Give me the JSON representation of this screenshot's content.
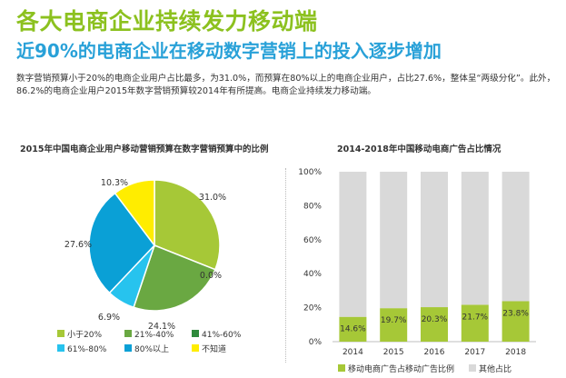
{
  "header": {
    "title": "各大电商企业持续发力移动端",
    "subtitle": "近90%的电商企业在移动数字营销上的投入逐步增加",
    "description": "数字营销预算小于20%的电商企业用户占比最多，为31.0%，而预算在80%以上的电商企业用户，占比27.6%，整体呈“两级分化”。此外，86.2%的电商企业用户2015年数字营销预算较2014年有所提高。电商企业持续发力移动端。"
  },
  "chart_data": [
    {
      "type": "pie",
      "title": "2015年中国电商企业用户移动营销预算在数字营销预算中的比例",
      "categories": [
        "小于20%",
        "21%-40%",
        "41%-60%",
        "61%-80%",
        "80%以上",
        "不知道"
      ],
      "values": [
        31.0,
        24.1,
        0.0,
        6.9,
        27.6,
        10.3
      ],
      "value_labels": [
        "31.0%",
        "24.1%",
        "0.0%",
        "6.9%",
        "27.6%",
        "10.3%"
      ],
      "colors": [
        "#a6c837",
        "#6aa842",
        "#2f8a3c",
        "#27c3ee",
        "#0aa0d6",
        "#ffed00"
      ],
      "legend_position": "bottom"
    },
    {
      "type": "bar",
      "stacked": true,
      "title": "2014-2018年中国移动电商广告占比情况",
      "categories": [
        "2014",
        "2015",
        "2016",
        "2017",
        "2018"
      ],
      "series": [
        {
          "name": "移动电商广告占移动广告比例",
          "values": [
            14.6,
            19.7,
            20.3,
            21.7,
            23.8
          ],
          "color": "#a6c837",
          "labels": [
            "14.6%",
            "19.7%",
            "20.3%",
            "21.7%",
            "23.8%"
          ]
        },
        {
          "name": "其他占比",
          "values": [
            85.4,
            80.3,
            79.7,
            78.3,
            76.2
          ],
          "color": "#d9d9d9"
        }
      ],
      "ylim": [
        0,
        100
      ],
      "yticks": [
        0,
        20,
        40,
        60,
        80,
        100
      ],
      "ytick_labels": [
        "0%",
        "20%",
        "40%",
        "60%",
        "80%",
        "100%"
      ],
      "legend_position": "bottom"
    }
  ]
}
